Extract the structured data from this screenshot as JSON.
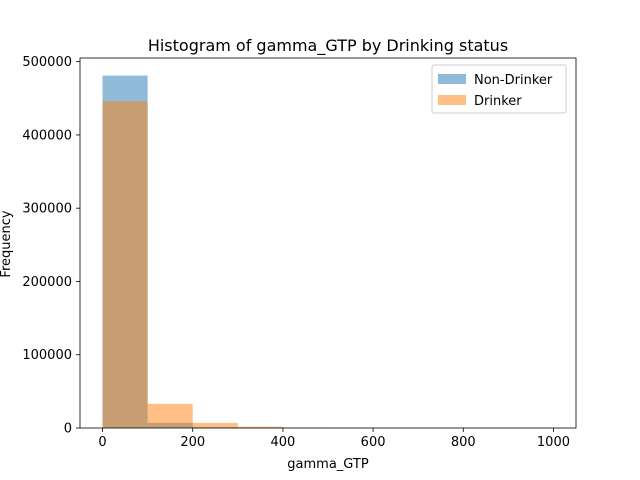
{
  "chart_data": {
    "type": "bar",
    "title": "Histogram of gamma_GTP by Drinking status",
    "xlabel": "gamma_GTP",
    "ylabel": "Frequency",
    "xlim": [
      -50,
      1050
    ],
    "ylim": [
      0,
      505000
    ],
    "x_ticks": [
      0,
      200,
      400,
      600,
      800,
      1000
    ],
    "y_ticks": [
      0,
      100000,
      200000,
      300000,
      400000,
      500000
    ],
    "bin_edges": [
      0,
      100,
      200,
      300,
      400,
      500,
      600,
      700,
      800,
      900,
      999
    ],
    "series": [
      {
        "name": "Non-Drinker",
        "color": "#1f77b4",
        "alpha": 0.5,
        "values": [
          481000,
          7000,
          1000,
          300,
          100,
          50,
          20,
          10,
          5,
          5
        ]
      },
      {
        "name": "Drinker",
        "color": "#ff7f0e",
        "alpha": 0.5,
        "values": [
          446000,
          33000,
          7000,
          1800,
          700,
          300,
          150,
          80,
          40,
          30
        ]
      }
    ],
    "legend_position": "upper-right",
    "grid": false
  }
}
